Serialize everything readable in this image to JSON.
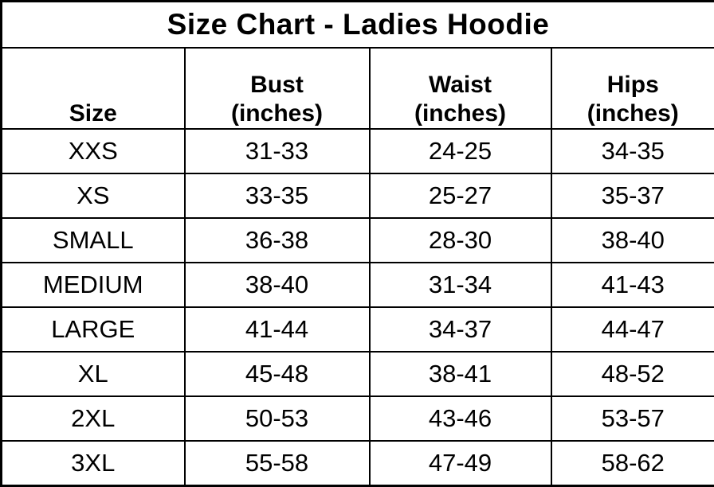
{
  "title": "Size Chart - Ladies Hoodie",
  "colors": {
    "background": "#ffffff",
    "border": "#000000",
    "text": "#000000"
  },
  "chart_data": {
    "type": "table",
    "title": "Size Chart - Ladies Hoodie",
    "columns": [
      {
        "name": "Size",
        "unit": ""
      },
      {
        "name": "Bust",
        "unit": "(inches)"
      },
      {
        "name": "Waist",
        "unit": "(inches)"
      },
      {
        "name": "Hips",
        "unit": "(inches)"
      }
    ],
    "rows": [
      [
        "XXS",
        "31-33",
        "24-25",
        "34-35"
      ],
      [
        "XS",
        "33-35",
        "25-27",
        "35-37"
      ],
      [
        "SMALL",
        "36-38",
        "28-30",
        "38-40"
      ],
      [
        "MEDIUM",
        "38-40",
        "31-34",
        "41-43"
      ],
      [
        "LARGE",
        "41-44",
        "34-37",
        "44-47"
      ],
      [
        "XL",
        "45-48",
        "38-41",
        "48-52"
      ],
      [
        "2XL",
        "50-53",
        "43-46",
        "53-57"
      ],
      [
        "3XL",
        "55-58",
        "47-49",
        "58-62"
      ]
    ]
  }
}
